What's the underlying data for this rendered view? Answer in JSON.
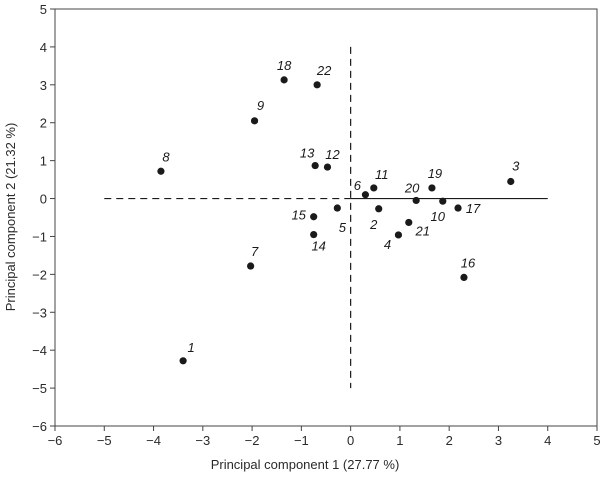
{
  "chart_data": {
    "type": "scatter",
    "title": "",
    "xlabel": "Principal component 1 (27.77 %)",
    "ylabel": "Principal component 2 (21.32 %)",
    "xlim": [
      -6,
      5
    ],
    "ylim": [
      -6,
      5
    ],
    "xticks": [
      "−6",
      "−5",
      "−4",
      "−3",
      "−2",
      "−1",
      "0",
      "1",
      "2",
      "3",
      "4",
      "5"
    ],
    "yticks": [
      "−6",
      "−5",
      "−4",
      "−3",
      "−2",
      "−1",
      "0",
      "1",
      "2",
      "3",
      "4",
      "5"
    ],
    "grid": false,
    "point_color": "#1a1a1a",
    "reference_lines": [
      {
        "axis": "horizontal",
        "at": 0,
        "from": -5,
        "to": 0,
        "style": "dashed"
      },
      {
        "axis": "horizontal",
        "at": 0,
        "from": 0,
        "to": 4,
        "style": "solid"
      },
      {
        "axis": "vertical",
        "at": 0,
        "from": -5,
        "to": 4,
        "style": "dashed"
      }
    ],
    "points": [
      {
        "label": "1",
        "x": -3.4,
        "y": -4.28
      },
      {
        "label": "2",
        "x": 0.57,
        "y": -0.27
      },
      {
        "label": "3",
        "x": 3.25,
        "y": 0.45
      },
      {
        "label": "4",
        "x": 0.97,
        "y": -0.96
      },
      {
        "label": "5",
        "x": -0.27,
        "y": -0.25
      },
      {
        "label": "6",
        "x": 0.3,
        "y": 0.1
      },
      {
        "label": "7",
        "x": -2.03,
        "y": -1.78
      },
      {
        "label": "8",
        "x": -3.85,
        "y": 0.72
      },
      {
        "label": "9",
        "x": -1.95,
        "y": 2.05
      },
      {
        "label": "10",
        "x": 1.87,
        "y": -0.07
      },
      {
        "label": "11",
        "x": 0.47,
        "y": 0.28
      },
      {
        "label": "12",
        "x": -0.47,
        "y": 0.83
      },
      {
        "label": "13",
        "x": -0.72,
        "y": 0.87
      },
      {
        "label": "14",
        "x": -0.75,
        "y": -0.95
      },
      {
        "label": "15",
        "x": -0.75,
        "y": -0.48
      },
      {
        "label": "16",
        "x": 2.3,
        "y": -2.08
      },
      {
        "label": "17",
        "x": 2.18,
        "y": -0.25
      },
      {
        "label": "18",
        "x": -1.35,
        "y": 3.13
      },
      {
        "label": "19",
        "x": 1.65,
        "y": 0.28
      },
      {
        "label": "20",
        "x": 1.33,
        "y": -0.05
      },
      {
        "label": "21",
        "x": 1.18,
        "y": -0.63
      },
      {
        "label": "22",
        "x": -0.68,
        "y": 3.0
      }
    ]
  }
}
